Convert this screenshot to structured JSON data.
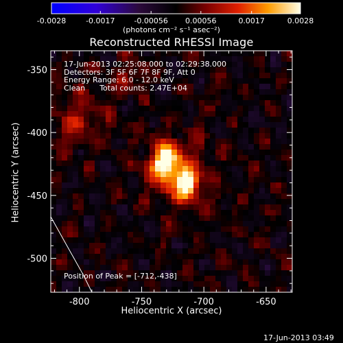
{
  "colorbar": {
    "tick_labels": [
      "-0.0028",
      "-0.0017",
      "-0.00056",
      "0.00056",
      "0.0017",
      "0.0028"
    ],
    "unit_label": "(photons cm⁻² s⁻¹ asec⁻²)",
    "range": [
      -0.0028,
      0.0028
    ]
  },
  "annotations": {
    "time_range": "17-Jun-2013 02:25:08.000 to 02:29:38.000",
    "detectors": "Detectors: 3F 5F 6F 7F 8F 9F, Att 0",
    "energy_range": "Energy Range: 6.0 - 12.0 keV",
    "method_counts": "Clean      Total counts: 2.47E+04"
  },
  "peak_label": "Position of Peak = [-712,-438]",
  "timestamp": "17-Jun-2013 03:49",
  "chart_data": {
    "type": "heatmap",
    "title": "Reconstructed RHESSI Image",
    "xlabel": "Heliocentric X (arcsec)",
    "ylabel": "Heliocentric Y (arcsec)",
    "x_ticks": [
      "-800",
      "-750",
      "-700",
      "-650"
    ],
    "y_ticks": [
      "-350",
      "-400",
      "-450",
      "-500"
    ],
    "xlim": [
      -823,
      -629
    ],
    "ylim": [
      -527,
      -335
    ],
    "colormap": "black-purple-blue / black-red-orange-yellow-white (diverging)",
    "vmin": -0.0028,
    "vmax": 0.0028,
    "peak": [
      -712,
      -438
    ],
    "sources": [
      {
        "x": -731,
        "y": -423,
        "sigma_x": 7,
        "sigma_y": 9,
        "amplitude": 0.0028
      },
      {
        "x": -714,
        "y": -441,
        "sigma_x": 6,
        "sigma_y": 8,
        "amplitude": 0.0026
      },
      {
        "x": -722,
        "y": -433,
        "sigma_x": 18,
        "sigma_y": 18,
        "amplitude": 0.0012
      },
      {
        "x": -800,
        "y": -388,
        "sigma_x": 15,
        "sigma_y": 15,
        "amplitude": 0.001
      },
      {
        "x": -760,
        "y": -355,
        "sigma_x": 12,
        "sigma_y": 10,
        "amplitude": 0.0006
      }
    ],
    "limb_curve": [
      [
        -823,
        -467
      ],
      [
        -810,
        -490
      ],
      [
        -797,
        -513
      ],
      [
        -790,
        -527
      ]
    ]
  }
}
